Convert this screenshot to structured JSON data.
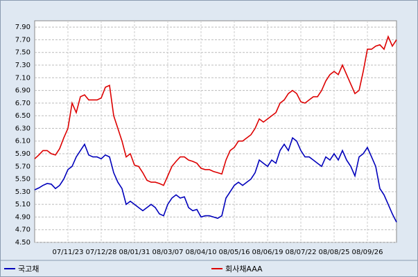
{
  "chart_data": {
    "type": "line",
    "categories": [
      null,
      null,
      null,
      null,
      null,
      null,
      null,
      null,
      "07/11/23",
      null,
      null,
      null,
      null,
      null,
      null,
      null,
      "07/12/28",
      null,
      null,
      null,
      null,
      null,
      null,
      null,
      "08/01/31",
      null,
      null,
      null,
      null,
      null,
      null,
      null,
      "08/03/07",
      null,
      null,
      null,
      null,
      null,
      null,
      null,
      "08/04/10",
      null,
      null,
      null,
      null,
      null,
      null,
      null,
      "08/05/16",
      null,
      null,
      null,
      null,
      null,
      null,
      null,
      "08/06/19",
      null,
      null,
      null,
      null,
      null,
      null,
      null,
      "08/07/22",
      null,
      null,
      null,
      null,
      null,
      null,
      null,
      "08/08/25",
      null,
      null,
      null,
      null,
      null,
      null,
      null,
      "08/09/26",
      null,
      null,
      null,
      null,
      null,
      null,
      null
    ],
    "series": [
      {
        "name": "국고채",
        "color": "#0000bb",
        "values": [
          5.33,
          5.36,
          5.4,
          5.43,
          5.42,
          5.35,
          5.4,
          5.5,
          5.65,
          5.7,
          5.85,
          5.95,
          6.05,
          5.88,
          5.85,
          5.85,
          5.82,
          5.88,
          5.85,
          5.6,
          5.45,
          5.35,
          5.1,
          5.15,
          5.1,
          5.05,
          5.0,
          5.05,
          5.1,
          5.05,
          4.95,
          4.92,
          5.1,
          5.2,
          5.25,
          5.2,
          5.22,
          5.05,
          5.0,
          5.02,
          4.9,
          4.92,
          4.92,
          4.9,
          4.88,
          4.92,
          5.2,
          5.3,
          5.4,
          5.45,
          5.4,
          5.45,
          5.5,
          5.6,
          5.8,
          5.75,
          5.7,
          5.8,
          5.75,
          5.95,
          6.05,
          5.95,
          6.15,
          6.1,
          5.95,
          5.85,
          5.85,
          5.8,
          5.75,
          5.7,
          5.85,
          5.8,
          5.9,
          5.8,
          5.95,
          5.8,
          5.7,
          5.55,
          5.85,
          5.9,
          6.0,
          5.85,
          5.7,
          5.35,
          5.25,
          5.1,
          4.95,
          4.82
        ]
      },
      {
        "name": "회사채AAA",
        "color": "#dd0000",
        "values": [
          5.82,
          5.88,
          5.95,
          5.95,
          5.9,
          5.88,
          5.98,
          6.15,
          6.3,
          6.7,
          6.55,
          6.8,
          6.83,
          6.75,
          6.75,
          6.75,
          6.78,
          6.95,
          6.98,
          6.5,
          6.3,
          6.1,
          5.85,
          5.9,
          5.72,
          5.7,
          5.6,
          5.48,
          5.45,
          5.45,
          5.43,
          5.4,
          5.55,
          5.7,
          5.78,
          5.85,
          5.85,
          5.8,
          5.78,
          5.75,
          5.67,
          5.65,
          5.65,
          5.62,
          5.6,
          5.58,
          5.8,
          5.95,
          6.0,
          6.1,
          6.1,
          6.15,
          6.2,
          6.3,
          6.45,
          6.4,
          6.45,
          6.5,
          6.55,
          6.7,
          6.75,
          6.85,
          6.9,
          6.85,
          6.72,
          6.7,
          6.75,
          6.8,
          6.8,
          6.9,
          7.05,
          7.15,
          7.2,
          7.15,
          7.3,
          7.15,
          7.0,
          6.85,
          6.9,
          7.2,
          7.55,
          7.55,
          7.6,
          7.62,
          7.55,
          7.75,
          7.6,
          7.7
        ]
      }
    ],
    "ylim": [
      4.5,
      8.0
    ],
    "yticks": [
      {
        "value": 4.5,
        "label": "4.50"
      },
      {
        "value": 4.7,
        "label": "4.70"
      },
      {
        "value": 4.9,
        "label": "4.90"
      },
      {
        "value": 5.1,
        "label": "5.10"
      },
      {
        "value": 5.3,
        "label": "5.30"
      },
      {
        "value": 5.5,
        "label": "5.50"
      },
      {
        "value": 5.7,
        "label": "5.70"
      },
      {
        "value": 5.9,
        "label": "5.90"
      },
      {
        "value": 6.1,
        "label": "6.10"
      },
      {
        "value": 6.3,
        "label": "6.30"
      },
      {
        "value": 6.5,
        "label": "6.50"
      },
      {
        "value": 6.7,
        "label": "6.70"
      },
      {
        "value": 6.9,
        "label": "6.90"
      },
      {
        "value": 7.1,
        "label": "7.10"
      },
      {
        "value": 7.3,
        "label": "7.30"
      },
      {
        "value": 7.5,
        "label": "7.50"
      },
      {
        "value": 7.7,
        "label": "7.70"
      },
      {
        "value": 7.9,
        "label": "7.90"
      }
    ],
    "grid": true
  }
}
